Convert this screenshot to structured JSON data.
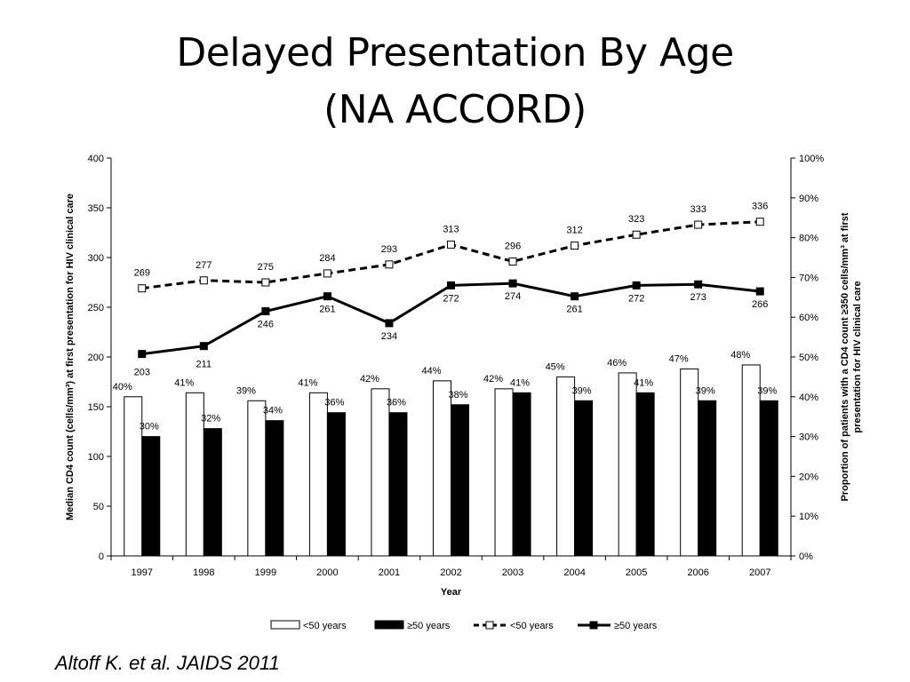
{
  "slide": {
    "title_line1": "Delayed Presentation By Age",
    "title_line2": "(NA ACCORD)",
    "citation": "Altoff K. et al. JAIDS 2011"
  },
  "chart_data": {
    "type": "bar",
    "title": "",
    "categories": [
      "1997",
      "1998",
      "1999",
      "2000",
      "2001",
      "2002",
      "2003",
      "2004",
      "2005",
      "2006",
      "2007"
    ],
    "xlabel": "Year",
    "ylabel_left": "Median CD4 count (cells/mm³) at first presentation for HIV clinical care",
    "ylabel_right_line1": "Proportion of patients with a CD4 count ≥350 cells/mm³ at first",
    "ylabel_right_line2": "presentation for HIV clinical care",
    "y_left": {
      "ylim": [
        0,
        400
      ],
      "ticks": [
        0,
        50,
        100,
        150,
        200,
        250,
        300,
        350,
        400
      ]
    },
    "y_right": {
      "ylim": [
        0,
        100
      ],
      "ticks": [
        0,
        10,
        20,
        30,
        40,
        50,
        60,
        70,
        80,
        90,
        100
      ],
      "tick_suffix": "%"
    },
    "bar_series": [
      {
        "name": "<50 years",
        "axis": "right",
        "fill": "#ffffff",
        "stroke": "#000000",
        "values": [
          40,
          41,
          39,
          41,
          42,
          44,
          42,
          45,
          46,
          47,
          48
        ],
        "labels": [
          "40%",
          "41%",
          "39%",
          "41%",
          "42%",
          "44%",
          "42%",
          "45%",
          "46%",
          "47%",
          "48%"
        ]
      },
      {
        "name": "≥50 years",
        "axis": "right",
        "fill": "#000000",
        "stroke": "#000000",
        "values": [
          30,
          32,
          34,
          36,
          36,
          38,
          41,
          39,
          41,
          39,
          39
        ],
        "labels": [
          "30%",
          "32%",
          "34%",
          "36%",
          "36%",
          "38%",
          "41%",
          "39%",
          "41%",
          "39%",
          "39%"
        ]
      }
    ],
    "line_series": [
      {
        "name": "<50 years",
        "axis": "left",
        "dashed": true,
        "marker_fill": "#ffffff",
        "values": [
          269,
          277,
          275,
          284,
          293,
          313,
          296,
          312,
          323,
          333,
          336
        ],
        "labels": [
          "269",
          "277",
          "275",
          "284",
          "293",
          "313",
          "296",
          "312",
          "323",
          "333",
          "336"
        ]
      },
      {
        "name": "≥50 years",
        "axis": "left",
        "dashed": false,
        "marker_fill": "#000000",
        "values": [
          203,
          211,
          246,
          261,
          234,
          272,
          274,
          261,
          272,
          273,
          266
        ],
        "labels": [
          "203",
          "211",
          "246",
          "261",
          "234",
          "272",
          "274",
          "261",
          "272",
          "273",
          "266"
        ]
      }
    ],
    "legend": {
      "placement": "bottom",
      "items": [
        "<50 years",
        "≥50 years",
        "<50 years",
        "≥50 years"
      ]
    },
    "grid": false
  }
}
